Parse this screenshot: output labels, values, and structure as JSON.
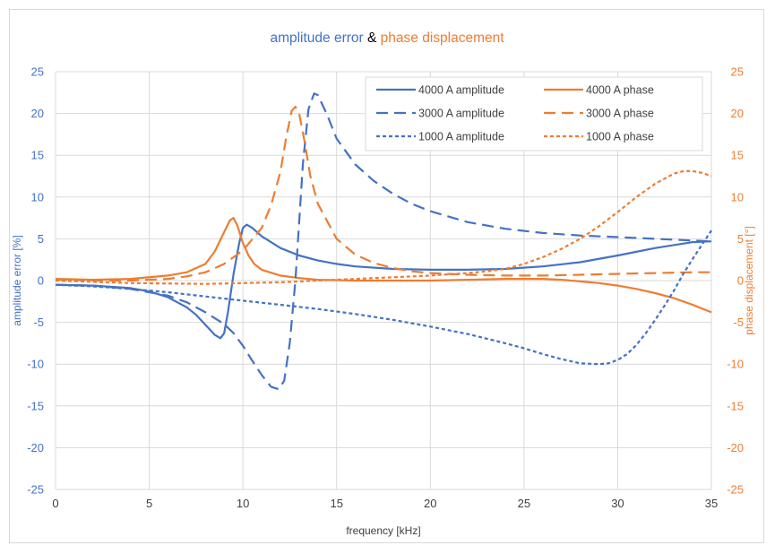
{
  "chart_data": {
    "type": "line",
    "title": {
      "part1": "amplitude error",
      "part2": " & ",
      "part3": "phase displacement"
    },
    "xlabel": "frequency [kHz]",
    "ylabel_left": "amplitude error [%]",
    "ylabel_right": "phase displacement [°]",
    "xlim": [
      0,
      35
    ],
    "ylim": [
      -25,
      25
    ],
    "x_ticks": [
      "0",
      "5",
      "10",
      "15",
      "20",
      "25",
      "30",
      "35"
    ],
    "y_ticks": [
      "25",
      "20",
      "15",
      "10",
      "5",
      "0",
      "-5",
      "-10",
      "-15",
      "-20",
      "-25"
    ],
    "grid": true,
    "legend_position": "top-right",
    "colors": {
      "amplitude": "#4472c4",
      "phase": "#ed7d31",
      "axis_text": "#595959"
    },
    "series": [
      {
        "name": "4000 A amplitude",
        "axis": "left",
        "color": "#4472c4",
        "dash": "solid",
        "x": [
          0,
          2,
          4,
          5,
          6,
          7,
          7.5,
          8,
          8.5,
          8.8,
          9.0,
          9.2,
          9.5,
          9.8,
          10.0,
          10.2,
          10.5,
          11,
          12,
          13,
          14,
          15,
          16,
          18,
          20,
          22,
          24,
          26,
          28,
          30,
          32,
          34,
          35
        ],
        "y": [
          -0.5,
          -0.6,
          -0.9,
          -1.3,
          -2.0,
          -3.2,
          -4.1,
          -5.3,
          -6.5,
          -6.9,
          -6.3,
          -3.8,
          0.8,
          4.5,
          6.3,
          6.7,
          6.3,
          5.3,
          3.9,
          3.0,
          2.4,
          2.0,
          1.7,
          1.4,
          1.3,
          1.3,
          1.4,
          1.7,
          2.2,
          3.0,
          3.9,
          4.6,
          4.7
        ]
      },
      {
        "name": "4000 A phase",
        "axis": "right",
        "color": "#ed7d31",
        "dash": "solid",
        "x": [
          0,
          2,
          4,
          6,
          7,
          8,
          8.5,
          9.0,
          9.3,
          9.5,
          9.7,
          10.0,
          10.3,
          10.6,
          11,
          12,
          13,
          14,
          16,
          18,
          20,
          22,
          24,
          26,
          27,
          28,
          29,
          30,
          31,
          32,
          33,
          34,
          35
        ],
        "y": [
          0.2,
          0.1,
          0.2,
          0.6,
          1.0,
          2.0,
          3.5,
          5.8,
          7.2,
          7.5,
          6.6,
          4.5,
          3.0,
          2.0,
          1.3,
          0.6,
          0.3,
          0.1,
          0.0,
          0.0,
          0.0,
          0.1,
          0.2,
          0.2,
          0.1,
          -0.1,
          -0.3,
          -0.6,
          -1.0,
          -1.5,
          -2.1,
          -2.9,
          -3.8
        ]
      },
      {
        "name": "3000 A amplitude",
        "axis": "left",
        "color": "#4472c4",
        "dash": "long",
        "x": [
          0,
          2,
          4,
          6,
          7,
          8,
          9,
          9.5,
          10,
          10.5,
          11,
          11.5,
          11.9,
          12.2,
          12.5,
          12.8,
          13.0,
          13.2,
          13.5,
          13.8,
          14.0,
          14.5,
          15,
          16,
          17,
          18,
          19,
          20,
          22,
          24,
          26,
          28,
          30,
          32,
          34,
          35
        ],
        "y": [
          -0.5,
          -0.6,
          -1.0,
          -1.8,
          -2.6,
          -3.8,
          -5.2,
          -6.3,
          -7.8,
          -9.6,
          -11.3,
          -12.7,
          -13.0,
          -12.0,
          -7.5,
          0.0,
          7.0,
          14.0,
          20.5,
          22.4,
          22.2,
          19.8,
          17.0,
          13.9,
          11.9,
          10.4,
          9.2,
          8.3,
          7.0,
          6.2,
          5.7,
          5.4,
          5.2,
          5.0,
          4.8,
          4.7
        ]
      },
      {
        "name": "3000 A phase",
        "axis": "right",
        "color": "#ed7d31",
        "dash": "long",
        "x": [
          0,
          2,
          4,
          6,
          7,
          8,
          9,
          10,
          11,
          11.5,
          12,
          12.3,
          12.6,
          12.8,
          13.0,
          13.3,
          13.6,
          14,
          15,
          16,
          17,
          18,
          19,
          20,
          22,
          24,
          26,
          28,
          30,
          32,
          34,
          35
        ],
        "y": [
          0.1,
          0.0,
          0.0,
          0.2,
          0.5,
          1.0,
          2.0,
          3.6,
          6.3,
          9.0,
          13.0,
          17.0,
          20.3,
          20.8,
          20.0,
          16.5,
          12.5,
          9.2,
          5.0,
          3.1,
          2.1,
          1.5,
          1.1,
          0.9,
          0.7,
          0.6,
          0.6,
          0.7,
          0.8,
          0.9,
          1.0,
          1.0
        ]
      },
      {
        "name": "1000 A amplitude",
        "axis": "left",
        "color": "#4472c4",
        "dash": "short",
        "x": [
          0,
          2,
          4,
          6,
          8,
          10,
          12,
          14,
          16,
          18,
          20,
          22,
          24,
          25,
          26,
          27,
          28,
          29,
          29.5,
          30,
          30.5,
          31,
          31.5,
          32,
          32.5,
          33,
          33.5,
          34,
          34.5,
          35
        ],
        "y": [
          -0.5,
          -0.7,
          -1.0,
          -1.4,
          -1.9,
          -2.4,
          -2.9,
          -3.4,
          -4.0,
          -4.7,
          -5.5,
          -6.4,
          -7.5,
          -8.1,
          -8.8,
          -9.4,
          -9.9,
          -10.0,
          -9.9,
          -9.5,
          -8.8,
          -7.7,
          -6.3,
          -4.7,
          -3.0,
          -1.2,
          0.8,
          2.6,
          4.3,
          6.0
        ]
      },
      {
        "name": "1000 A phase",
        "axis": "right",
        "color": "#ed7d31",
        "dash": "short",
        "x": [
          0,
          4,
          8,
          12,
          14,
          16,
          18,
          20,
          22,
          23,
          24,
          25,
          26,
          27,
          28,
          29,
          30,
          31,
          32,
          33,
          33.5,
          34,
          34.5,
          35
        ],
        "y": [
          0.0,
          -0.3,
          -0.4,
          -0.2,
          0.0,
          0.2,
          0.4,
          0.6,
          0.9,
          1.1,
          1.4,
          2.0,
          2.8,
          3.8,
          5.0,
          6.5,
          8.2,
          10.0,
          11.6,
          12.8,
          13.1,
          13.1,
          12.9,
          12.5
        ]
      }
    ]
  }
}
